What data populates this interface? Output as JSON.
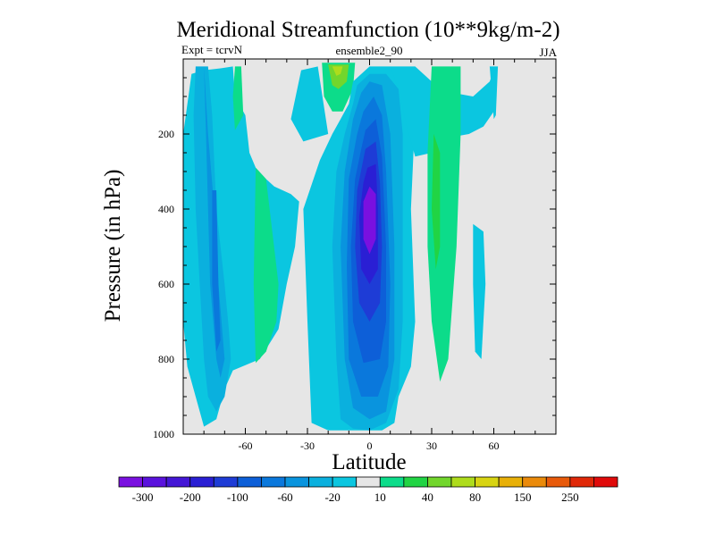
{
  "chart_data": {
    "type": "contour",
    "title": "Meridional Streamfunction (10**9kg/m-2)",
    "subtitle_left": "Expt = tcrvN",
    "subtitle_center": "ensemble2_90",
    "subtitle_right": "JJA",
    "xlabel": "Latitude",
    "ylabel": "Pressure (in hPa)",
    "xlim": [
      -90,
      90
    ],
    "ylim": [
      1000,
      0
    ],
    "x_ticks": [
      -60,
      -30,
      0,
      30,
      60
    ],
    "x_tick_labels": [
      "-60",
      "-30",
      "0",
      "30",
      "60"
    ],
    "y_ticks": [
      200,
      400,
      600,
      800,
      1000
    ],
    "y_tick_labels": [
      "200",
      "400",
      "600",
      "800",
      "1000"
    ],
    "contour_levels": [
      -300,
      -250,
      -200,
      -150,
      -100,
      -80,
      -60,
      -40,
      -20,
      -10,
      10,
      20,
      40,
      60,
      80,
      100,
      150,
      200,
      250,
      300
    ],
    "colorbar_labels": [
      "-300",
      "-200",
      "-100",
      "-60",
      "-20",
      "10",
      "40",
      "80",
      "150",
      "250"
    ],
    "colorbar_colors": [
      "#7a10e0",
      "#5a12dd",
      "#4416d6",
      "#2a1fd4",
      "#1e3cd6",
      "#0d5fd8",
      "#0a78dc",
      "#0994de",
      "#0ab0de",
      "#0bc6e0",
      "#e6e6e6",
      "#0cdc8a",
      "#21d444",
      "#72d62c",
      "#aedc1c",
      "#d8d412",
      "#e8b008",
      "#ea8a0a",
      "#e85a0a",
      "#e02808",
      "#e00a0a"
    ],
    "background_color": "#e6e6e6",
    "features": [
      {
        "name": "negative-center-cell",
        "type": "negative",
        "min_value": -300,
        "lat_range": [
          -10,
          14
        ],
        "pressure_range": [
          40,
          990
        ]
      },
      {
        "name": "southern-negative-cell",
        "type": "negative",
        "min_value": -100,
        "lat_range": [
          -85,
          -65
        ],
        "pressure_range": [
          20,
          970
        ]
      },
      {
        "name": "southern-positive-band",
        "type": "positive",
        "max_value": 40,
        "lat_range": [
          -56,
          -44
        ],
        "pressure_range": [
          300,
          810
        ]
      },
      {
        "name": "tropical-positive-cell",
        "type": "positive",
        "max_value": 80,
        "lat_range": [
          -23,
          -6
        ],
        "pressure_range": [
          10,
          150
        ]
      },
      {
        "name": "northern-positive-cell",
        "type": "positive",
        "max_value": 40,
        "lat_range": [
          28,
          44
        ],
        "pressure_range": [
          10,
          860
        ]
      },
      {
        "name": "northern-negative-patch",
        "type": "negative",
        "min_value": -20,
        "lat_range": [
          50,
          56
        ],
        "pressure_range": [
          440,
          800
        ]
      }
    ]
  }
}
